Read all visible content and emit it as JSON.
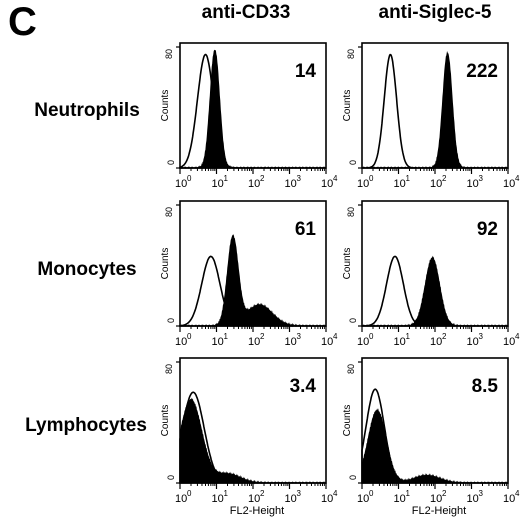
{
  "panel_label": "C",
  "column_titles": [
    "anti-CD33",
    "anti-Siglec-5"
  ],
  "row_labels": [
    "Neutrophils",
    "Monocytes",
    "Lymphocytes"
  ],
  "colors": {
    "ink": "#000000",
    "background": "#ffffff"
  },
  "chart_data": [
    {
      "type": "area",
      "row": "Neutrophils",
      "column": "anti-CD33",
      "value_label": "14",
      "ylabel": "Counts",
      "xlabel": "",
      "xscale": "log",
      "xlim": [
        1,
        10000
      ],
      "ylim": [
        0,
        80
      ],
      "x_tick_labels": [
        "10",
        "10",
        "10",
        "10",
        "10"
      ],
      "x_tick_exponents": [
        "0",
        "1",
        "2",
        "3",
        "4"
      ],
      "y_tick_labels": [
        "0",
        "80"
      ],
      "series": [
        {
          "name": "",
          "style": "outline",
          "peak_x": 5,
          "peak_y": 75,
          "width_decades": 0.22
        },
        {
          "name": "",
          "style": "filled",
          "peak_x": 9,
          "peak_y": 78,
          "width_decades": 0.13
        }
      ]
    },
    {
      "type": "area",
      "row": "Neutrophils",
      "column": "anti-Siglec-5",
      "value_label": "222",
      "ylabel": "Counts",
      "xlabel": "",
      "xscale": "log",
      "xlim": [
        1,
        10000
      ],
      "ylim": [
        0,
        80
      ],
      "x_tick_labels": [
        "10",
        "10",
        "10",
        "10",
        "10"
      ],
      "x_tick_exponents": [
        "0",
        "1",
        "2",
        "3",
        "4"
      ],
      "y_tick_labels": [
        "0",
        "80"
      ],
      "series": [
        {
          "name": "",
          "style": "outline",
          "peak_x": 6,
          "peak_y": 75,
          "width_decades": 0.17
        },
        {
          "name": "",
          "style": "filled",
          "peak_x": 220,
          "peak_y": 76,
          "width_decades": 0.13
        }
      ]
    },
    {
      "type": "area",
      "row": "Monocytes",
      "column": "anti-CD33",
      "value_label": "61",
      "ylabel": "Counts",
      "xlabel": "",
      "xscale": "log",
      "xlim": [
        1,
        10000
      ],
      "ylim": [
        0,
        80
      ],
      "x_tick_labels": [
        "10",
        "10",
        "10",
        "10",
        "10"
      ],
      "x_tick_exponents": [
        "0",
        "1",
        "2",
        "3",
        "4"
      ],
      "y_tick_labels": [
        "0",
        "80"
      ],
      "series": [
        {
          "name": "",
          "style": "outline",
          "peak_x": 7,
          "peak_y": 46,
          "width_decades": 0.25
        },
        {
          "name": "",
          "style": "filled",
          "peak_x": 28,
          "peak_y": 58,
          "width_decades": 0.15,
          "tail_x": 150,
          "tail_y": 14
        }
      ]
    },
    {
      "type": "area",
      "row": "Monocytes",
      "column": "anti-Siglec-5",
      "value_label": "92",
      "ylabel": "Counts",
      "xlabel": "",
      "xscale": "log",
      "xlim": [
        1,
        10000
      ],
      "ylim": [
        0,
        80
      ],
      "x_tick_labels": [
        "10",
        "10",
        "10",
        "10",
        "10"
      ],
      "x_tick_exponents": [
        "0",
        "1",
        "2",
        "3",
        "4"
      ],
      "y_tick_labels": [
        "0",
        "80"
      ],
      "series": [
        {
          "name": "",
          "style": "outline",
          "peak_x": 8,
          "peak_y": 46,
          "width_decades": 0.23
        },
        {
          "name": "",
          "style": "filled",
          "peak_x": 85,
          "peak_y": 45,
          "width_decades": 0.2
        }
      ]
    },
    {
      "type": "area",
      "row": "Lymphocytes",
      "column": "anti-CD33",
      "value_label": "3.4",
      "ylabel": "Counts",
      "xlabel": "FL2-Height",
      "xscale": "log",
      "xlim": [
        1,
        10000
      ],
      "ylim": [
        0,
        80
      ],
      "x_tick_labels": [
        "10",
        "10",
        "10",
        "10",
        "10"
      ],
      "x_tick_exponents": [
        "0",
        "1",
        "2",
        "3",
        "4"
      ],
      "y_tick_labels": [
        "0",
        "80"
      ],
      "series": [
        {
          "name": "",
          "style": "outline",
          "peak_x": 2.3,
          "peak_y": 60,
          "width_decades": 0.3
        },
        {
          "name": "",
          "style": "filled",
          "peak_x": 2,
          "peak_y": 55,
          "width_decades": 0.3,
          "tail_x": 20,
          "tail_y": 6
        }
      ]
    },
    {
      "type": "area",
      "row": "Lymphocytes",
      "column": "anti-Siglec-5",
      "value_label": "8.5",
      "ylabel": "Counts",
      "xlabel": "FL2-Height",
      "xscale": "log",
      "xlim": [
        1,
        10000
      ],
      "ylim": [
        0,
        80
      ],
      "x_tick_labels": [
        "10",
        "10",
        "10",
        "10",
        "10"
      ],
      "x_tick_exponents": [
        "0",
        "1",
        "2",
        "3",
        "4"
      ],
      "y_tick_labels": [
        "0",
        "80"
      ],
      "series": [
        {
          "name": "",
          "style": "outline",
          "peak_x": 2.3,
          "peak_y": 62,
          "width_decades": 0.25
        },
        {
          "name": "",
          "style": "filled",
          "peak_x": 2.6,
          "peak_y": 48,
          "width_decades": 0.25,
          "tail_x": 60,
          "tail_y": 5
        }
      ]
    }
  ]
}
